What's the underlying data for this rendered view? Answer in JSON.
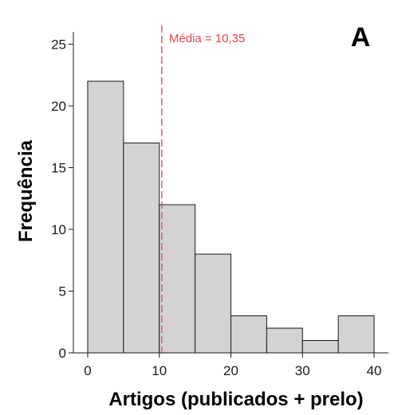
{
  "chart_data": {
    "type": "bar",
    "subtype": "histogram",
    "panel_letter": "A",
    "xlabel": "Artigos (publicados + prelo)",
    "ylabel": "Frequência",
    "bins": [
      {
        "from": 0,
        "to": 5,
        "count": 22
      },
      {
        "from": 5,
        "to": 10,
        "count": 17
      },
      {
        "from": 10,
        "to": 15,
        "count": 12
      },
      {
        "from": 15,
        "to": 20,
        "count": 8
      },
      {
        "from": 20,
        "to": 25,
        "count": 3
      },
      {
        "from": 25,
        "to": 30,
        "count": 2
      },
      {
        "from": 30,
        "to": 35,
        "count": 1
      },
      {
        "from": 35,
        "to": 40,
        "count": 3
      }
    ],
    "xlim": [
      -2,
      42
    ],
    "ylim": [
      0,
      26
    ],
    "xticks": [
      0,
      10,
      20,
      30,
      40
    ],
    "yticks": [
      0,
      5,
      10,
      15,
      20,
      25
    ],
    "mean": {
      "value": 10.35,
      "label": "Média = 10,35",
      "color": "#e8424b",
      "style": "dashed"
    },
    "bar_fill": "#d3d3d3",
    "bar_edge": "#1a1a1a",
    "grid": false,
    "legend": "none"
  }
}
